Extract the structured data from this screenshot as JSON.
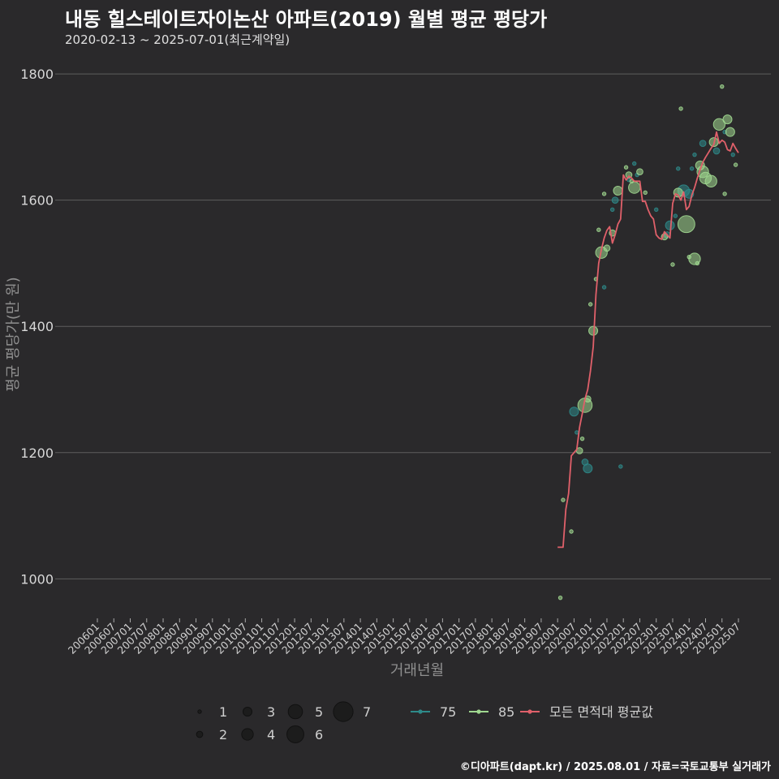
{
  "header": {
    "title": "내동 힐스테이트자이논산 아파트(2019) 월별 평균 평당가",
    "subtitle": "2020-02-13 ~ 2025-07-01(최근계약일)"
  },
  "credit": "©디아파트(dapt.kr) / 2025.08.01 / 자료=국토교통부 실거래가",
  "colors": {
    "background": "#2a292b",
    "grid": "#5e5e5e",
    "s75": "#2e8a8a",
    "s85": "#a0d890",
    "avg": "#e0606a"
  },
  "chart_data": {
    "type": "scatter",
    "title": "내동 힐스테이트자이논산 아파트(2019) 월별 평균 평당가",
    "xlabel": "거래년월",
    "ylabel": "평균 평당가(만 원)",
    "ylim": [
      940,
      1840
    ],
    "yticks": [
      1000,
      1200,
      1400,
      1600,
      1800
    ],
    "x_range": [
      "2006-01",
      "2025-07"
    ],
    "xticks": [
      "200601",
      "200607",
      "200701",
      "200707",
      "200801",
      "200807",
      "200901",
      "200907",
      "201001",
      "201007",
      "201101",
      "201107",
      "201201",
      "201207",
      "201301",
      "201307",
      "201401",
      "201407",
      "201501",
      "201507",
      "201601",
      "201607",
      "201701",
      "201707",
      "201801",
      "201807",
      "201901",
      "201907",
      "202001",
      "202007",
      "202101",
      "202107",
      "202201",
      "202207",
      "202301",
      "202307",
      "202401",
      "202407",
      "202501",
      "202507"
    ],
    "size_legend": {
      "label_values": [
        1,
        2,
        3,
        4,
        5,
        6,
        7
      ]
    },
    "series": [
      {
        "name": "75",
        "points": [
          {
            "x": "2020-07",
            "y": 1265,
            "n": 3
          },
          {
            "x": "2020-08",
            "y": 1232,
            "n": 1
          },
          {
            "x": "2020-11",
            "y": 1185,
            "n": 2
          },
          {
            "x": "2020-12",
            "y": 1175,
            "n": 3
          },
          {
            "x": "2021-06",
            "y": 1462,
            "n": 1
          },
          {
            "x": "2021-09",
            "y": 1585,
            "n": 1
          },
          {
            "x": "2021-10",
            "y": 1600,
            "n": 2
          },
          {
            "x": "2021-12",
            "y": 1178,
            "n": 1
          },
          {
            "x": "2022-03",
            "y": 1632,
            "n": 1
          },
          {
            "x": "2022-05",
            "y": 1658,
            "n": 1
          },
          {
            "x": "2022-06",
            "y": 1640,
            "n": 1
          },
          {
            "x": "2023-01",
            "y": 1585,
            "n": 1
          },
          {
            "x": "2023-05",
            "y": 1545,
            "n": 2
          },
          {
            "x": "2023-06",
            "y": 1560,
            "n": 3
          },
          {
            "x": "2023-08",
            "y": 1575,
            "n": 1
          },
          {
            "x": "2023-09",
            "y": 1650,
            "n": 1
          },
          {
            "x": "2023-11",
            "y": 1615,
            "n": 4
          },
          {
            "x": "2024-01",
            "y": 1610,
            "n": 3
          },
          {
            "x": "2024-02",
            "y": 1650,
            "n": 1
          },
          {
            "x": "2024-03",
            "y": 1672,
            "n": 1
          },
          {
            "x": "2024-06",
            "y": 1690,
            "n": 2
          },
          {
            "x": "2024-11",
            "y": 1678,
            "n": 2
          },
          {
            "x": "2025-02",
            "y": 1708,
            "n": 1
          },
          {
            "x": "2025-05",
            "y": 1672,
            "n": 1
          }
        ]
      },
      {
        "name": "85",
        "points": [
          {
            "x": "2020-02",
            "y": 970,
            "n": 1
          },
          {
            "x": "2020-03",
            "y": 1125,
            "n": 1
          },
          {
            "x": "2020-06",
            "y": 1075,
            "n": 1
          },
          {
            "x": "2020-09",
            "y": 1203,
            "n": 2
          },
          {
            "x": "2020-10",
            "y": 1222,
            "n": 1
          },
          {
            "x": "2020-11",
            "y": 1275,
            "n": 5
          },
          {
            "x": "2020-12",
            "y": 1285,
            "n": 2
          },
          {
            "x": "2021-01",
            "y": 1435,
            "n": 1
          },
          {
            "x": "2021-02",
            "y": 1393,
            "n": 3
          },
          {
            "x": "2021-03",
            "y": 1475,
            "n": 1
          },
          {
            "x": "2021-04",
            "y": 1553,
            "n": 1
          },
          {
            "x": "2021-05",
            "y": 1517,
            "n": 4
          },
          {
            "x": "2021-06",
            "y": 1610,
            "n": 1
          },
          {
            "x": "2021-07",
            "y": 1524,
            "n": 2
          },
          {
            "x": "2021-09",
            "y": 1548,
            "n": 2
          },
          {
            "x": "2021-11",
            "y": 1615,
            "n": 3
          },
          {
            "x": "2022-02",
            "y": 1652,
            "n": 1
          },
          {
            "x": "2022-03",
            "y": 1640,
            "n": 2
          },
          {
            "x": "2022-04",
            "y": 1630,
            "n": 1
          },
          {
            "x": "2022-05",
            "y": 1620,
            "n": 4
          },
          {
            "x": "2022-07",
            "y": 1645,
            "n": 2
          },
          {
            "x": "2022-09",
            "y": 1612,
            "n": 1
          },
          {
            "x": "2023-04",
            "y": 1542,
            "n": 2
          },
          {
            "x": "2023-07",
            "y": 1498,
            "n": 1
          },
          {
            "x": "2023-09",
            "y": 1612,
            "n": 3
          },
          {
            "x": "2023-10",
            "y": 1745,
            "n": 1
          },
          {
            "x": "2023-12",
            "y": 1562,
            "n": 6
          },
          {
            "x": "2024-01",
            "y": 1510,
            "n": 1
          },
          {
            "x": "2024-03",
            "y": 1507,
            "n": 4
          },
          {
            "x": "2024-04",
            "y": 1500,
            "n": 1
          },
          {
            "x": "2024-05",
            "y": 1655,
            "n": 3
          },
          {
            "x": "2024-06",
            "y": 1645,
            "n": 4
          },
          {
            "x": "2024-07",
            "y": 1635,
            "n": 4
          },
          {
            "x": "2024-09",
            "y": 1630,
            "n": 4
          },
          {
            "x": "2024-10",
            "y": 1692,
            "n": 3
          },
          {
            "x": "2024-12",
            "y": 1720,
            "n": 4
          },
          {
            "x": "2025-01",
            "y": 1780,
            "n": 1
          },
          {
            "x": "2025-02",
            "y": 1610,
            "n": 1
          },
          {
            "x": "2025-03",
            "y": 1728,
            "n": 3
          },
          {
            "x": "2025-04",
            "y": 1708,
            "n": 3
          },
          {
            "x": "2025-06",
            "y": 1656,
            "n": 1
          }
        ]
      },
      {
        "name": "모든 면적대 평균값",
        "type": "line",
        "points": [
          {
            "x": "2020-01",
            "y": 1050
          },
          {
            "x": "2020-03",
            "y": 1050
          },
          {
            "x": "2020-04",
            "y": 1110
          },
          {
            "x": "2020-05",
            "y": 1135
          },
          {
            "x": "2020-06",
            "y": 1195
          },
          {
            "x": "2020-07",
            "y": 1200
          },
          {
            "x": "2020-08",
            "y": 1205
          },
          {
            "x": "2020-09",
            "y": 1240
          },
          {
            "x": "2020-10",
            "y": 1262
          },
          {
            "x": "2020-11",
            "y": 1285
          },
          {
            "x": "2020-12",
            "y": 1300
          },
          {
            "x": "2021-01",
            "y": 1330
          },
          {
            "x": "2021-02",
            "y": 1368
          },
          {
            "x": "2021-03",
            "y": 1450
          },
          {
            "x": "2021-04",
            "y": 1500
          },
          {
            "x": "2021-05",
            "y": 1522
          },
          {
            "x": "2021-06",
            "y": 1540
          },
          {
            "x": "2021-07",
            "y": 1552
          },
          {
            "x": "2021-08",
            "y": 1558
          },
          {
            "x": "2021-09",
            "y": 1532
          },
          {
            "x": "2021-10",
            "y": 1545
          },
          {
            "x": "2021-11",
            "y": 1562
          },
          {
            "x": "2021-12",
            "y": 1570
          },
          {
            "x": "2022-01",
            "y": 1640
          },
          {
            "x": "2022-02",
            "y": 1632
          },
          {
            "x": "2022-03",
            "y": 1638
          },
          {
            "x": "2022-04",
            "y": 1635
          },
          {
            "x": "2022-05",
            "y": 1630
          },
          {
            "x": "2022-06",
            "y": 1630
          },
          {
            "x": "2022-07",
            "y": 1630
          },
          {
            "x": "2022-08",
            "y": 1598
          },
          {
            "x": "2022-09",
            "y": 1598
          },
          {
            "x": "2022-10",
            "y": 1585
          },
          {
            "x": "2022-11",
            "y": 1575
          },
          {
            "x": "2022-12",
            "y": 1570
          },
          {
            "x": "2023-01",
            "y": 1545
          },
          {
            "x": "2023-02",
            "y": 1540
          },
          {
            "x": "2023-03",
            "y": 1538
          },
          {
            "x": "2023-04",
            "y": 1550
          },
          {
            "x": "2023-05",
            "y": 1545
          },
          {
            "x": "2023-06",
            "y": 1540
          },
          {
            "x": "2023-07",
            "y": 1595
          },
          {
            "x": "2023-08",
            "y": 1610
          },
          {
            "x": "2023-09",
            "y": 1608
          },
          {
            "x": "2023-10",
            "y": 1600
          },
          {
            "x": "2023-11",
            "y": 1613
          },
          {
            "x": "2023-12",
            "y": 1585
          },
          {
            "x": "2024-01",
            "y": 1590
          },
          {
            "x": "2024-02",
            "y": 1608
          },
          {
            "x": "2024-03",
            "y": 1620
          },
          {
            "x": "2024-04",
            "y": 1635
          },
          {
            "x": "2024-05",
            "y": 1648
          },
          {
            "x": "2024-06",
            "y": 1660
          },
          {
            "x": "2024-07",
            "y": 1668
          },
          {
            "x": "2024-08",
            "y": 1675
          },
          {
            "x": "2024-09",
            "y": 1682
          },
          {
            "x": "2024-10",
            "y": 1688
          },
          {
            "x": "2024-11",
            "y": 1708
          },
          {
            "x": "2024-12",
            "y": 1690
          },
          {
            "x": "2025-01",
            "y": 1695
          },
          {
            "x": "2025-02",
            "y": 1692
          },
          {
            "x": "2025-03",
            "y": 1680
          },
          {
            "x": "2025-04",
            "y": 1678
          },
          {
            "x": "2025-05",
            "y": 1690
          },
          {
            "x": "2025-06",
            "y": 1682
          },
          {
            "x": "2025-07",
            "y": 1675
          }
        ]
      }
    ],
    "legend": {
      "sizes": [
        {
          "label": "1",
          "n": 1
        },
        {
          "label": "2",
          "n": 2
        },
        {
          "label": "3",
          "n": 3
        },
        {
          "label": "4",
          "n": 4
        },
        {
          "label": "5",
          "n": 5
        },
        {
          "label": "6",
          "n": 6
        },
        {
          "label": "7",
          "n": 7
        }
      ],
      "series": [
        {
          "label": "75",
          "key": "s75"
        },
        {
          "label": "85",
          "key": "s85"
        },
        {
          "label": "모든 면적대 평균값",
          "key": "avg"
        }
      ]
    }
  }
}
